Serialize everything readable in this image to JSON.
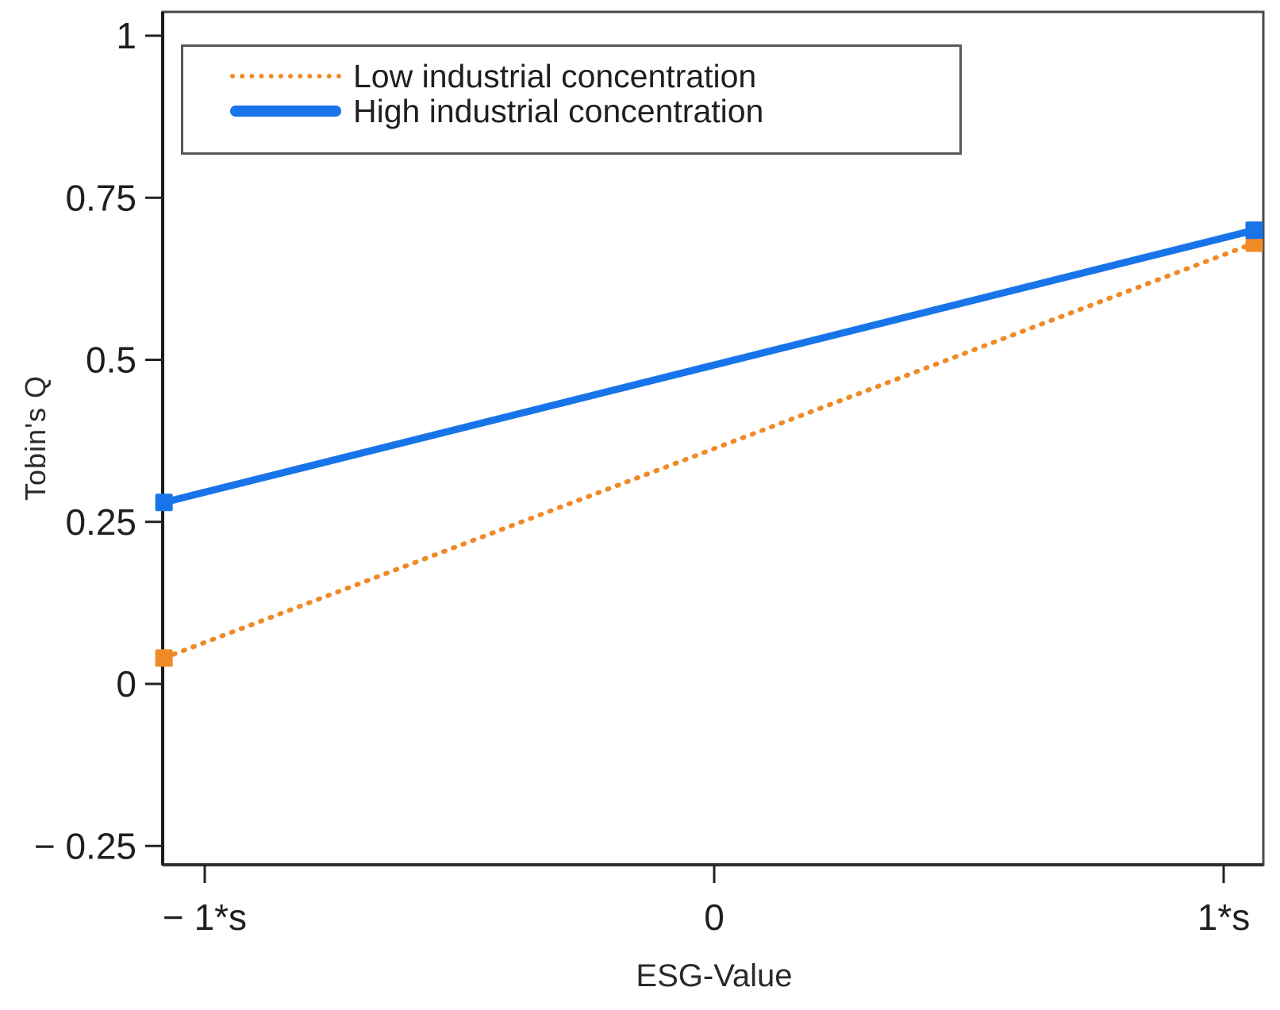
{
  "figure": {
    "background": "#ffffff",
    "plot_border_color": "#4a4a4a",
    "axis_color": "#1a1a1a",
    "text_color": "#1f1f1f"
  },
  "chart_data": {
    "type": "line",
    "title": "",
    "xlabel": "ESG-Value",
    "ylabel": "Tobin's Q",
    "x_tick_values": [
      -1,
      0,
      1
    ],
    "x_tick_labels": [
      "− 1*s",
      "0",
      "1*s"
    ],
    "y_tick_values": [
      1,
      0.75,
      0.5,
      0.25,
      0,
      -0.25
    ],
    "y_tick_labels": [
      "1",
      "0.75",
      "0.5",
      "0.25",
      "0",
      "− 0.25"
    ],
    "xlim": [
      -1.08,
      1.08
    ],
    "ylim": [
      -0.28,
      1.04
    ],
    "grid": false,
    "legend_position": "top-left inside",
    "series": [
      {
        "name": "Low industrial concentration",
        "color": "#F08A28",
        "line_style": "dotted",
        "marker": "square",
        "x": [
          -1.08,
          1.06
        ],
        "y": [
          0.04,
          0.68
        ]
      },
      {
        "name": "High industrial concentration",
        "color": "#1874E8",
        "line_style": "solid",
        "marker": "square",
        "x": [
          -1.08,
          1.06
        ],
        "y": [
          0.28,
          0.7
        ]
      }
    ]
  },
  "legend": {
    "items": [
      {
        "label": "Low industrial concentration",
        "color": "#F08A28",
        "style": "dotted"
      },
      {
        "label": "High industrial concentration",
        "color": "#1874E8",
        "style": "solid"
      }
    ]
  }
}
